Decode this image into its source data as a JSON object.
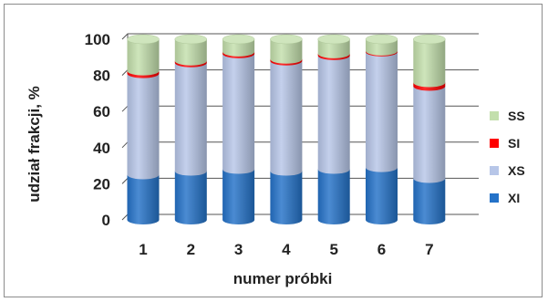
{
  "chart_data": {
    "type": "bar",
    "stacked": true,
    "style": "3d-cylinder",
    "categories": [
      "1",
      "2",
      "3",
      "4",
      "5",
      "6",
      "7"
    ],
    "series": [
      {
        "name": "XI",
        "color": "#2472c8",
        "values": [
          25,
          27,
          28,
          27,
          28,
          29,
          23
        ]
      },
      {
        "name": "XS",
        "color": "#b7c6e8",
        "values": [
          56,
          60,
          64,
          61,
          63,
          64,
          51
        ]
      },
      {
        "name": "SI",
        "color": "#ff0000",
        "values": [
          1.5,
          1,
          1,
          1,
          1,
          0.5,
          2
        ]
      },
      {
        "name": "SS",
        "color": "#c3dfac",
        "values": [
          17.5,
          12,
          7,
          11,
          8,
          6.5,
          24
        ]
      }
    ],
    "xlabel": "numer próbki",
    "ylabel": "udział frakcji, %",
    "ylim": [
      0,
      100
    ],
    "yticks": [
      0,
      20,
      40,
      60,
      80,
      100
    ],
    "grid": true,
    "legend_position": "right"
  }
}
